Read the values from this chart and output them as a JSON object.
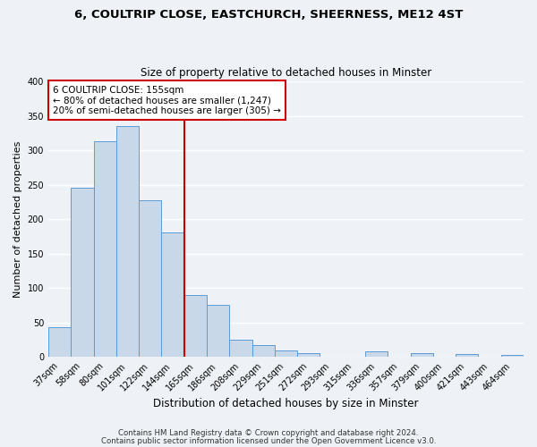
{
  "title": "6, COULTRIP CLOSE, EASTCHURCH, SHEERNESS, ME12 4ST",
  "subtitle": "Size of property relative to detached houses in Minster",
  "xlabel": "Distribution of detached houses by size in Minster",
  "ylabel": "Number of detached properties",
  "bin_labels": [
    "37sqm",
    "58sqm",
    "80sqm",
    "101sqm",
    "122sqm",
    "144sqm",
    "165sqm",
    "186sqm",
    "208sqm",
    "229sqm",
    "251sqm",
    "272sqm",
    "293sqm",
    "315sqm",
    "336sqm",
    "357sqm",
    "379sqm",
    "400sqm",
    "421sqm",
    "443sqm",
    "464sqm"
  ],
  "bar_values": [
    43,
    245,
    313,
    335,
    228,
    180,
    90,
    76,
    25,
    17,
    9,
    5,
    0,
    0,
    8,
    0,
    5,
    0,
    4,
    0,
    3
  ],
  "bar_color": "#c8d8e8",
  "bar_edge_color": "#5b9bd5",
  "vline_color": "#cc0000",
  "annotation_title": "6 COULTRIP CLOSE: 155sqm",
  "annotation_line1": "← 80% of detached houses are smaller (1,247)",
  "annotation_line2": "20% of semi-detached houses are larger (305) →",
  "annotation_box_color": "white",
  "annotation_box_edge_color": "#cc0000",
  "ylim": [
    0,
    400
  ],
  "footer1": "Contains HM Land Registry data © Crown copyright and database right 2024.",
  "footer2": "Contains public sector information licensed under the Open Government Licence v3.0.",
  "bg_color": "#eef2f7",
  "grid_color": "white"
}
